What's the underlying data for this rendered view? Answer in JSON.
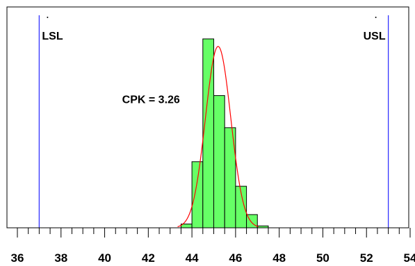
{
  "chart_data": {
    "type": "bar",
    "title": "",
    "xlabel": "",
    "ylabel": "",
    "xlim": [
      36,
      54
    ],
    "ylim": [
      0,
      100
    ],
    "x_ticks": [
      36,
      38,
      40,
      42,
      44,
      46,
      48,
      50,
      52,
      54
    ],
    "x_tick_labels": [
      "36",
      "38",
      "40",
      "42",
      "44",
      "46",
      "48",
      "50",
      "52",
      "54"
    ],
    "minor_tick_step": 0.5,
    "grid": false,
    "histogram": {
      "bin_width": 0.5,
      "bins": [
        {
          "start": 43.5,
          "end": 44.0,
          "value": 2
        },
        {
          "start": 44.0,
          "end": 44.5,
          "value": 35
        },
        {
          "start": 44.5,
          "end": 45.0,
          "value": 100
        },
        {
          "start": 45.0,
          "end": 45.5,
          "value": 70
        },
        {
          "start": 45.5,
          "end": 46.0,
          "value": 53
        },
        {
          "start": 46.0,
          "end": 46.5,
          "value": 22
        },
        {
          "start": 46.5,
          "end": 47.0,
          "value": 7
        },
        {
          "start": 47.0,
          "end": 47.5,
          "value": 1
        }
      ],
      "fill_color": "#66ff66",
      "edge_color": "#000000"
    },
    "fit_curve": {
      "type": "normal",
      "mean": 45.2,
      "sd": 0.58,
      "peak": 96,
      "color": "#ff0000"
    },
    "spec_limits": [
      {
        "label": "LSL",
        "value": 37,
        "color": "#3333ff"
      },
      {
        "label": "USL",
        "value": 53,
        "color": "#3333ff"
      }
    ],
    "annotation": {
      "text": "CPK = 3.26",
      "x": 40.8,
      "y": 66
    }
  }
}
